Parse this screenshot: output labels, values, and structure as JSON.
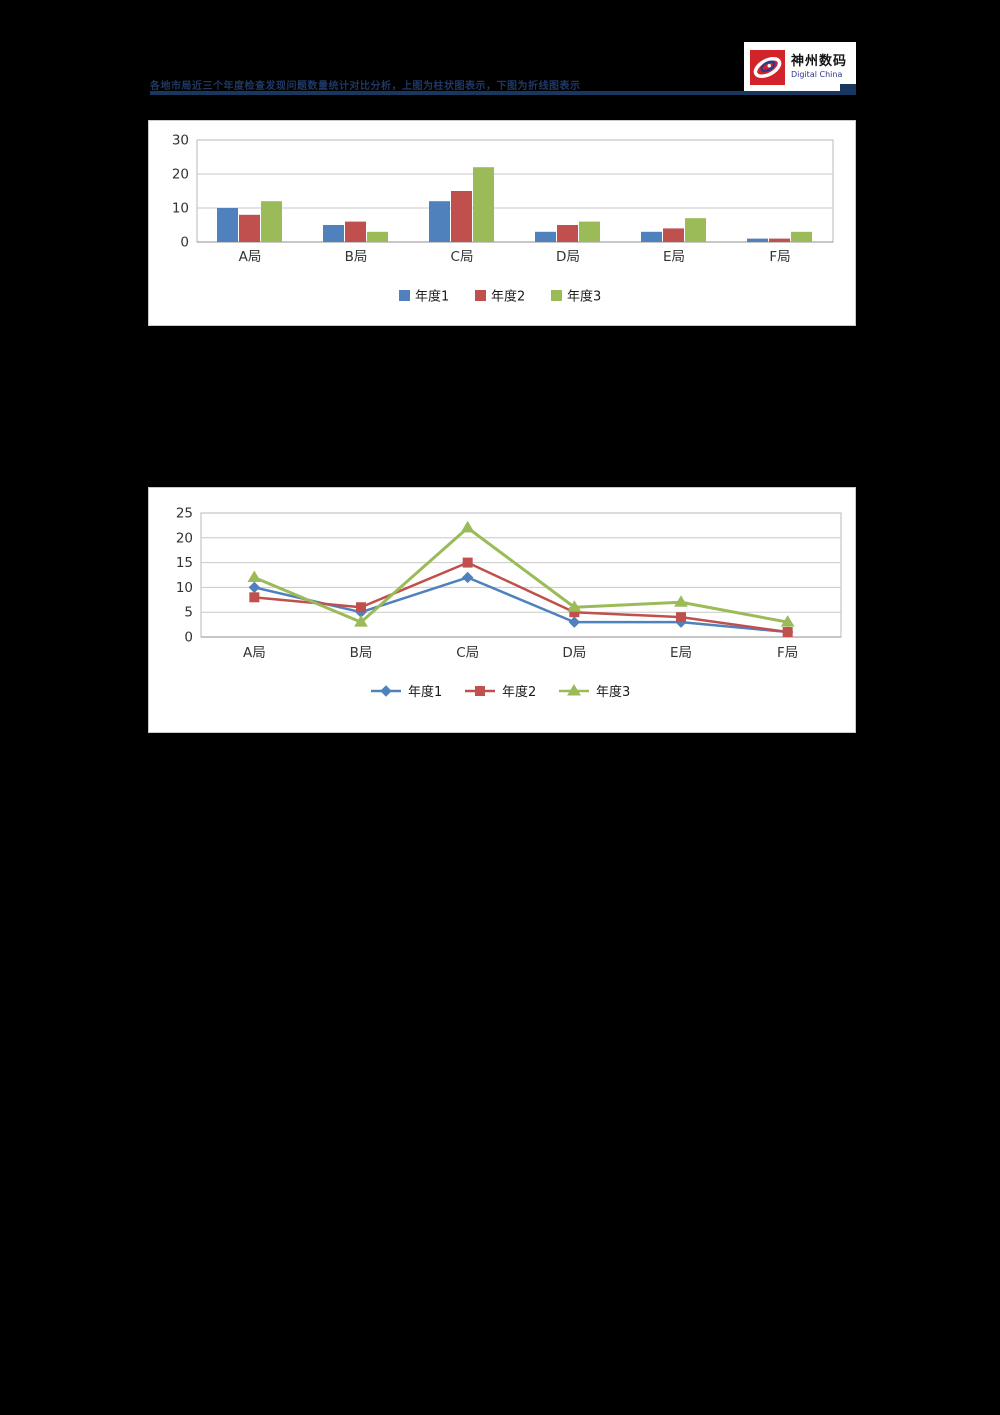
{
  "header": {
    "title": "各地市局近三个年度检查发现问题数量统计对比分析，上图为柱状图表示，下图为折线图表示",
    "rule_color": "#17375E"
  },
  "logo": {
    "brand_cn": "神州数码",
    "brand_en": "Digital China",
    "mark_color": "#D2232A",
    "swirl_color": "#2B3990"
  },
  "chart_data": [
    {
      "type": "bar",
      "title": "",
      "categories": [
        "A局",
        "B局",
        "C局",
        "D局",
        "E局",
        "F局"
      ],
      "series": [
        {
          "name": "年度1",
          "color": "#4F81BD",
          "values": [
            10,
            5,
            12,
            3,
            3,
            1
          ]
        },
        {
          "name": "年度2",
          "color": "#C0504D",
          "values": [
            8,
            6,
            15,
            5,
            4,
            1
          ]
        },
        {
          "name": "年度3",
          "color": "#9BBB59",
          "values": [
            12,
            3,
            22,
            6,
            7,
            3
          ]
        }
      ],
      "ylim": [
        0,
        30
      ],
      "yticks": [
        0,
        10,
        20,
        30
      ],
      "grid": true,
      "legend_position": "bottom"
    },
    {
      "type": "line",
      "title": "",
      "categories": [
        "A局",
        "B局",
        "C局",
        "D局",
        "E局",
        "F局"
      ],
      "series": [
        {
          "name": "年度1",
          "color": "#4F81BD",
          "marker": "diamond",
          "values": [
            10,
            5,
            12,
            3,
            3,
            1
          ]
        },
        {
          "name": "年度2",
          "color": "#C0504D",
          "marker": "square",
          "values": [
            8,
            6,
            15,
            5,
            4,
            1
          ]
        },
        {
          "name": "年度3",
          "color": "#9BBB59",
          "marker": "triangle",
          "values": [
            12,
            3,
            22,
            6,
            7,
            3
          ]
        }
      ],
      "ylim": [
        0,
        25
      ],
      "yticks": [
        0,
        5,
        10,
        15,
        20,
        25
      ],
      "grid": true,
      "legend_position": "bottom"
    }
  ]
}
